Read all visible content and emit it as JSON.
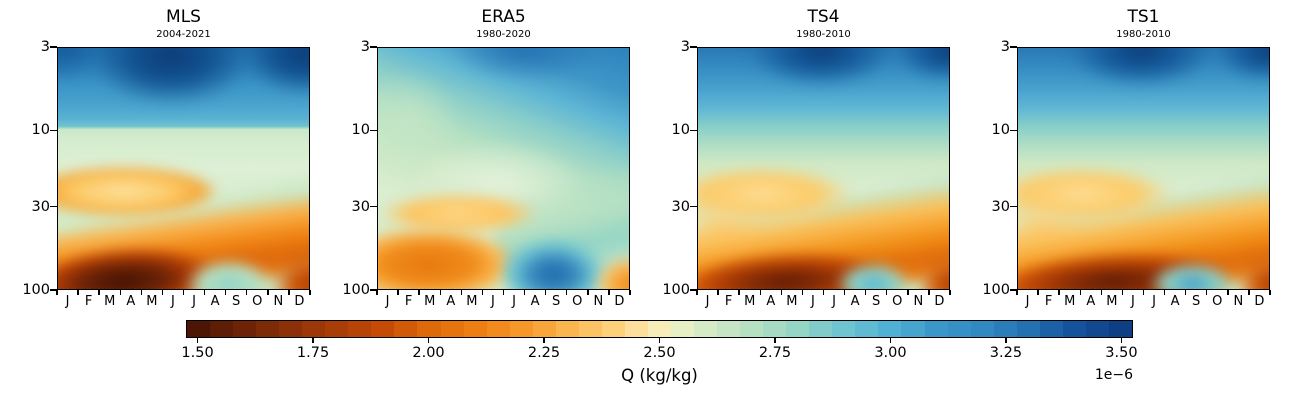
{
  "figure": {
    "panels": [
      {
        "id": "mls",
        "title": "MLS",
        "subtitle": "2004-2021"
      },
      {
        "id": "era5",
        "title": "ERA5",
        "subtitle": "1980-2020"
      },
      {
        "id": "ts4",
        "title": "TS4",
        "subtitle": "1980-2010"
      },
      {
        "id": "ts1",
        "title": "TS1",
        "subtitle": "1980-2010"
      }
    ]
  },
  "chart_data": {
    "type": "heatmap",
    "subtype": "filled-contour, month vs pressure climatology of water vapour",
    "panels": [
      {
        "title": "MLS",
        "subtitle": "2004-2021",
        "features": "Q maximum >3.4e-6 (dark navy) at 3-6 hPa peaking Mar-Jun and Nov-Jan; sharp horizontal drop to ~2.6e-6 (pale green) near 9 hPa; yellow-orange tongue ~2.2e-6 at 20-40 hPa Jan-Jun; dry diagonal band rising from ~70 hPa in Jan to ~35 hPa by Dec; driest <1.5e-6 (dark brown) at 100 hPa Jan-Mar; moist teal patch ~2.8e-6 at 100 hPa Sep-Oct; orange again at 100 hPa Dec."
      },
      {
        "title": "ERA5",
        "subtitle": "1980-2020",
        "features": "Smoothest field; blue ~3.1e-6 across 3-8 hPa, gradually blending to pale green by ~15 hPa; broad pale-green middle; moderate orange minimum ~1.9-2.1e-6 at 50-100 hPa Jan-Jun with yellow tongue to ~July; wet blue patch ~3.2e-6 at 100 hPa Aug-Oct with teal band rising toward upper right; orange at 100 hPa Dec."
      },
      {
        "title": "TS4",
        "subtitle": "1980-2010",
        "features": "Navy maximum ~3.4e-6 at 3-5 hPa Apr-Jul and Oct-Dec; gradual transition to green near 10-15 hPa; yellow tongue at ~25-35 hPa Jan-Jun; strong diagonal orange dry band from ~60 hPa Jan rising to ~30 hPa Dec; dark red-brown <1.6e-6 along 100 hPa Jan-Jun; blue patch at 100 hPa Sep-Oct; dark orange bottom-right corner."
      },
      {
        "title": "TS1",
        "subtitle": "1980-2010",
        "features": "Very similar to TS4: navy maximum at top Apr-Jul and Oct-Dec, yellow tongue at ~30 hPa Jan-Jun, strong diagonal dry band, dark red-brown minimum along 100 hPa Jan-Jun, blue moist patch at 100 hPa Sep-Oct, dark orange bottom-right corner."
      }
    ],
    "x": {
      "label": "",
      "tick_labels": [
        "J",
        "F",
        "M",
        "A",
        "M",
        "J",
        "J",
        "A",
        "S",
        "O",
        "N",
        "D"
      ],
      "meaning": "month of year"
    },
    "y": {
      "label": "",
      "tick_labels": [
        "3",
        "10",
        "30",
        "100"
      ],
      "tick_values": [
        3,
        10,
        30,
        100
      ],
      "scale": "log",
      "range": [
        3,
        100
      ],
      "meaning": "pressure (hPa), decreasing upward"
    },
    "colorbar": {
      "label": "Q (kg/kg)",
      "offset_text": "1e−6",
      "tick_labels": [
        "1.50",
        "1.75",
        "2.00",
        "2.25",
        "2.50",
        "2.75",
        "3.00",
        "3.25",
        "3.50"
      ],
      "tick_values": [
        1.5,
        1.75,
        2.0,
        2.25,
        2.5,
        2.75,
        3.0,
        3.25,
        3.5
      ],
      "vmin": 1.475,
      "vmax": 3.525,
      "level_step": 0.05,
      "orientation": "horizontal",
      "colormap_stops": [
        [
          1.475,
          "#451303"
        ],
        [
          1.6,
          "#6e2306"
        ],
        [
          1.75,
          "#9c3708"
        ],
        [
          1.9,
          "#c44a06"
        ],
        [
          2.0,
          "#de690a"
        ],
        [
          2.1,
          "#ec7e12"
        ],
        [
          2.2,
          "#f59729"
        ],
        [
          2.3,
          "#fbb54e"
        ],
        [
          2.4,
          "#fdd07a"
        ],
        [
          2.475,
          "#fde7ab"
        ],
        [
          2.525,
          "#eef2c4"
        ],
        [
          2.6,
          "#d5ebc5"
        ],
        [
          2.7,
          "#b5e0c2"
        ],
        [
          2.8,
          "#94d5c5"
        ],
        [
          2.9,
          "#6ec4cf"
        ],
        [
          3.0,
          "#51b1d5"
        ],
        [
          3.1,
          "#3b97c9"
        ],
        [
          3.2,
          "#3289c1"
        ],
        [
          3.3,
          "#2471b2"
        ],
        [
          3.4,
          "#14529b"
        ],
        [
          3.525,
          "#0c3a7e"
        ]
      ]
    },
    "layout": {
      "grid": false,
      "panel_order": [
        "MLS",
        "ERA5",
        "TS4",
        "TS1"
      ]
    }
  }
}
